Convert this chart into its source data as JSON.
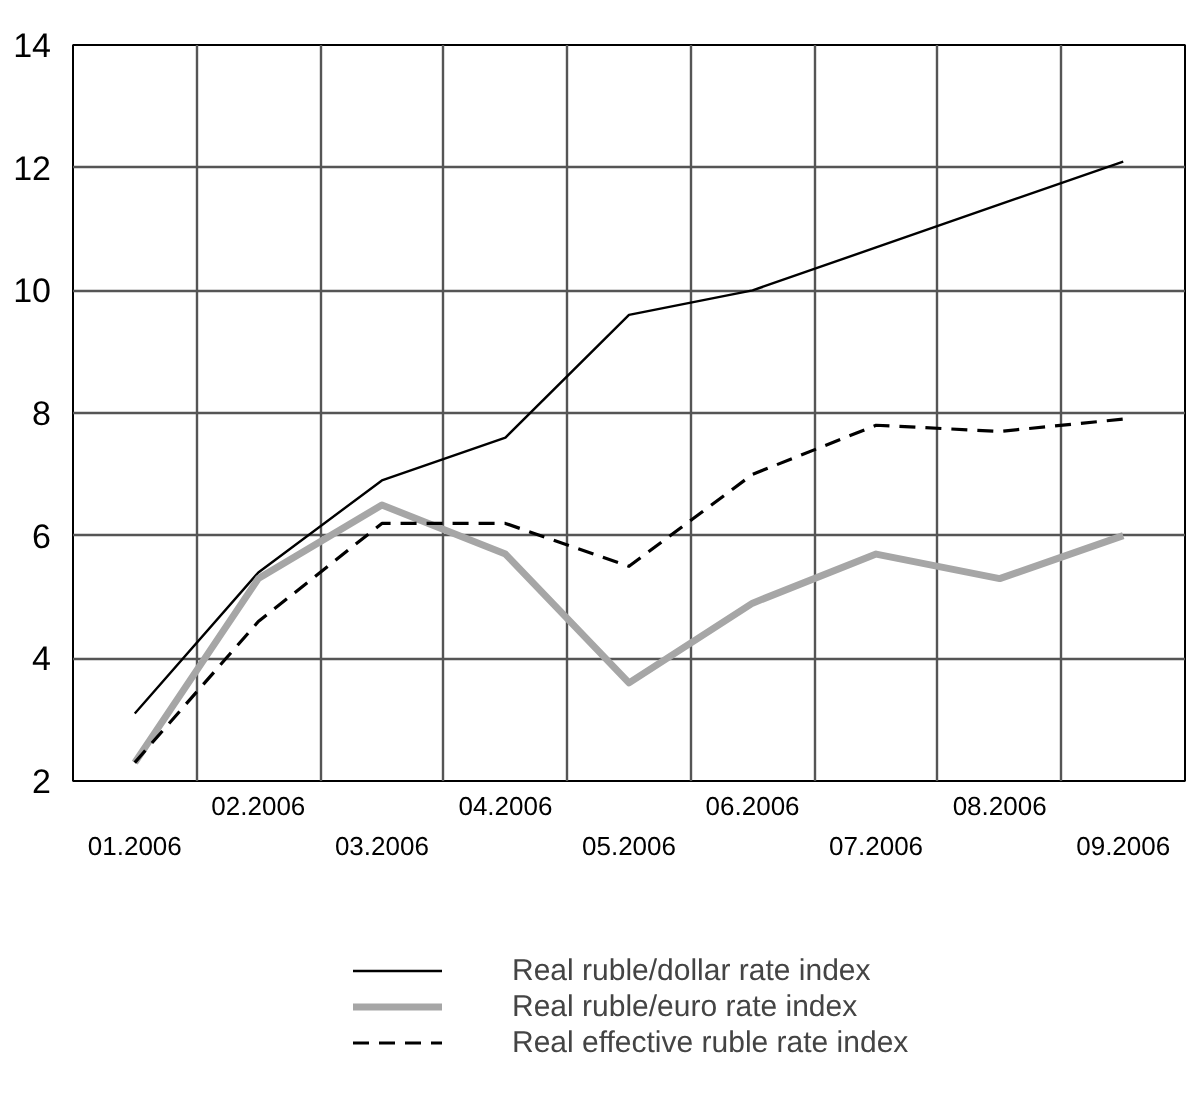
{
  "chart_data": {
    "type": "line",
    "categories": [
      "01.2006",
      "02.2006",
      "03.2006",
      "04.2006",
      "05.2006",
      "06.2006",
      "07.2006",
      "08.2006",
      "09.2006"
    ],
    "series": [
      {
        "name": "Real ruble/dollar rate index",
        "color": "#000000",
        "line_style": "solid",
        "values": [
          3.1,
          5.4,
          6.9,
          7.6,
          9.6,
          10.0,
          10.7,
          11.4,
          12.1
        ]
      },
      {
        "name": "Real ruble/euro rate index",
        "color": "#a6a6a6",
        "line_style": "solid",
        "values": [
          2.3,
          5.3,
          6.5,
          5.7,
          3.6,
          4.9,
          5.7,
          5.3,
          6.0
        ]
      },
      {
        "name": "Real effective ruble rate index",
        "color": "#000000",
        "line_style": "dashed",
        "values": [
          2.3,
          4.6,
          6.2,
          6.2,
          5.5,
          7.0,
          7.8,
          7.7,
          7.9
        ]
      }
    ],
    "ylim": [
      2,
      14
    ],
    "yticks": [
      2,
      4,
      6,
      8,
      10,
      12,
      14
    ],
    "grid": true,
    "legend": "bottom",
    "marker": "none"
  }
}
